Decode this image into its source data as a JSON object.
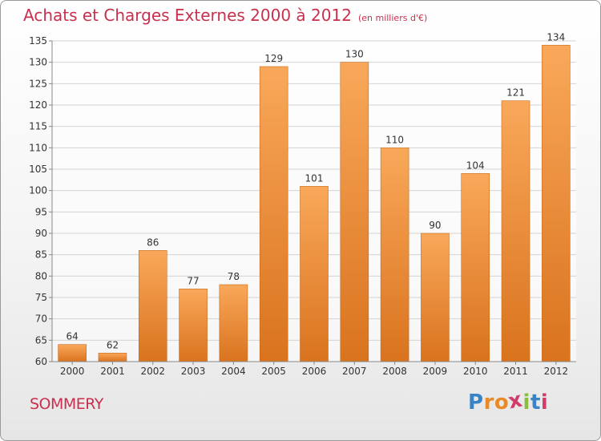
{
  "header": {
    "title": "Achats et Charges Externes 2000 à 2012",
    "subtitle": "(en milliers d'€)"
  },
  "footer": {
    "commune": "SOMMERY",
    "logo_letters": [
      "P",
      "r",
      "o",
      "x",
      "i",
      "t",
      "i"
    ],
    "logo_colors": [
      "#3a84c6",
      "#e88a28",
      "#e88a28",
      "#d23c6c",
      "#8cbc3c",
      "#3a84c6",
      "#d23c6c"
    ]
  },
  "colors": {
    "bar_light": "#f9a85a",
    "bar_dark": "#d9731e",
    "accent": "#c8304e"
  },
  "chart_data": {
    "type": "bar",
    "categories": [
      "2000",
      "2001",
      "2002",
      "2003",
      "2004",
      "2005",
      "2006",
      "2007",
      "2008",
      "2009",
      "2010",
      "2011",
      "2012"
    ],
    "values": [
      64,
      62,
      86,
      77,
      78,
      129,
      101,
      130,
      110,
      90,
      104,
      121,
      134
    ],
    "data_labels": [
      "64",
      "62",
      "86",
      "77",
      "78",
      "129",
      "101",
      "130",
      "110",
      "90",
      "104",
      "121",
      "134"
    ],
    "ylim": [
      60,
      135
    ],
    "yticks": [
      60,
      65,
      70,
      75,
      80,
      85,
      90,
      95,
      100,
      105,
      110,
      115,
      120,
      125,
      130,
      135
    ],
    "ytick_labels": [
      "60",
      "65",
      "70",
      "75",
      "80",
      "85",
      "90",
      "95",
      "100",
      "105",
      "110",
      "115",
      "120",
      "125",
      "130",
      "135"
    ],
    "grid": true,
    "xlabel": "",
    "ylabel": ""
  }
}
